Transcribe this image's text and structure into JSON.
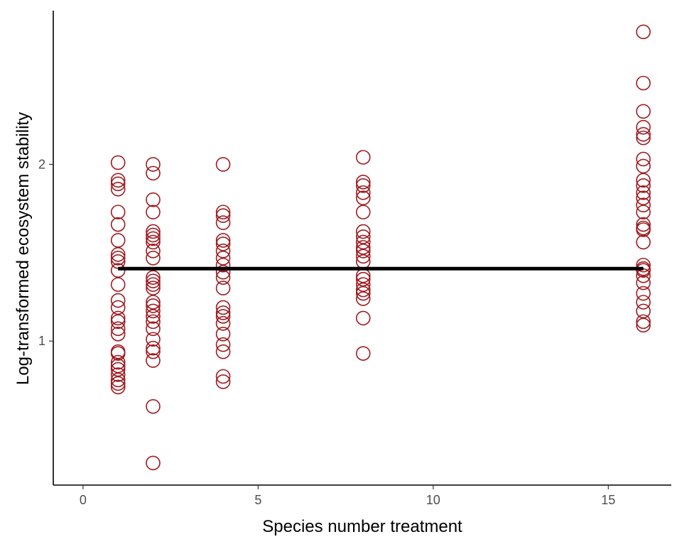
{
  "chart_data": {
    "type": "scatter",
    "title": "",
    "xlabel": "Species number treatment",
    "ylabel": "Log-transformed ecosystem stability",
    "xlim": [
      -0.85,
      16.8
    ],
    "ylim": [
      0.185,
      2.87
    ],
    "xticks": [
      0,
      5,
      10,
      15
    ],
    "yticks": [
      1,
      2
    ],
    "grid": false,
    "marker": "open-circle",
    "point_color": "#9E1B20",
    "line_color": "#000000",
    "series": [
      {
        "x": 1,
        "y": [
          2.01,
          1.91,
          1.89,
          1.86,
          1.73,
          1.66,
          1.57,
          1.49,
          1.47,
          1.45,
          1.4,
          1.32,
          1.23,
          1.19,
          1.13,
          1.11,
          1.07,
          1.04,
          0.94,
          0.93,
          0.88,
          0.86,
          0.84,
          0.81,
          0.78,
          0.76,
          0.74
        ]
      },
      {
        "x": 2,
        "y": [
          2.0,
          1.95,
          1.8,
          1.73,
          1.62,
          1.6,
          1.58,
          1.56,
          1.51,
          1.47,
          1.36,
          1.34,
          1.32,
          1.3,
          1.22,
          1.2,
          1.17,
          1.14,
          1.11,
          1.07,
          1.01,
          0.96,
          0.94,
          0.89,
          0.63,
          0.31
        ]
      },
      {
        "x": 4,
        "y": [
          2.0,
          1.73,
          1.71,
          1.67,
          1.57,
          1.55,
          1.51,
          1.47,
          1.43,
          1.39,
          1.36,
          1.3,
          1.19,
          1.16,
          1.14,
          1.1,
          1.04,
          0.98,
          0.94,
          0.8,
          0.77
        ]
      },
      {
        "x": 8,
        "y": [
          2.04,
          1.9,
          1.88,
          1.84,
          1.81,
          1.73,
          1.62,
          1.59,
          1.56,
          1.53,
          1.51,
          1.48,
          1.45,
          1.37,
          1.35,
          1.32,
          1.29,
          1.27,
          1.24,
          1.13,
          0.93
        ]
      },
      {
        "x": 16,
        "y": [
          2.75,
          2.46,
          2.3,
          2.21,
          2.17,
          2.15,
          2.03,
          1.99,
          1.91,
          1.88,
          1.84,
          1.81,
          1.77,
          1.73,
          1.66,
          1.64,
          1.63,
          1.56,
          1.43,
          1.41,
          1.4,
          1.37,
          1.33,
          1.27,
          1.22,
          1.17,
          1.11,
          1.09
        ]
      }
    ],
    "fit_line": {
      "x": [
        1,
        16
      ],
      "y": [
        1.41,
        1.41
      ]
    }
  }
}
